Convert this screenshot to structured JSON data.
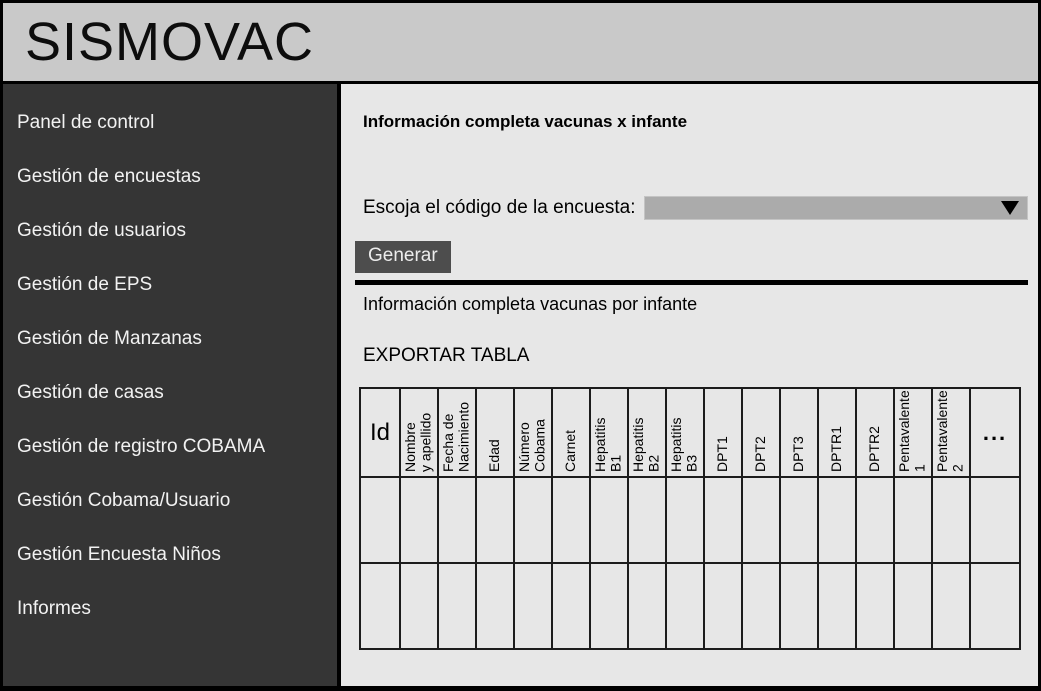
{
  "app": {
    "title": "SISMOVAC"
  },
  "sidebar": {
    "items": [
      {
        "label": "Panel de control"
      },
      {
        "label": "Gestión de encuestas"
      },
      {
        "label": "Gestión de usuarios"
      },
      {
        "label": "Gestión de EPS"
      },
      {
        "label": "Gestión de Manzanas"
      },
      {
        "label": "Gestión de casas"
      },
      {
        "label": "Gestión de registro COBAMA"
      },
      {
        "label": "Gestión Cobama/Usuario"
      },
      {
        "label": "Gestión Encuesta Niños"
      },
      {
        "label": "Informes"
      }
    ]
  },
  "main": {
    "page_title": "Información completa vacunas x infante",
    "survey_select": {
      "label": "Escoja el código de la encuesta:",
      "value": ""
    },
    "generate_button": "Generar",
    "section_title": "Información completa vacunas por infante",
    "export_link": "EXPORTAR TABLA",
    "table": {
      "columns": [
        "Id",
        "Nombre\ny apellido",
        "Fecha de\nNacimiento",
        "Edad",
        "Número\nCobama",
        "Carnet",
        "Hepatitis\nB1",
        "Hepatitis\nB2",
        "Hepatitis\nB3",
        "DPT1",
        "DPT2",
        "DPT3",
        "DPTR1",
        "DPTR2",
        "Pentavalente\n1",
        "Pentavalente\n2",
        "..."
      ],
      "empty_body_rows": 2
    }
  },
  "colors": {
    "header_bg": "#c9c9c9",
    "sidebar_bg": "#353535",
    "main_bg": "#e7e7e7",
    "dropdown_bg": "#ababab",
    "button_bg": "#4d4d4d",
    "border": "#000000"
  }
}
